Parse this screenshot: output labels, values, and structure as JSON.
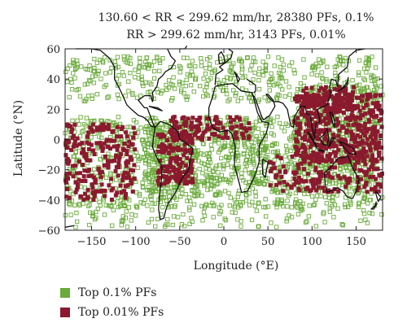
{
  "chart_data": {
    "type": "scatter",
    "title_lines": [
      "130.60 < RR < 299.62 mm/hr, 28380 PFs, 0.1%",
      "RR > 299.62 mm/hr, 3143 PFs, 0.01%"
    ],
    "xlabel": "Longitude (°E)",
    "ylabel": "Latitude (°N)",
    "xlim": [
      -180,
      180
    ],
    "ylim": [
      -60,
      60
    ],
    "xticks": [
      -150,
      -100,
      -50,
      0,
      50,
      100,
      150
    ],
    "yticks": [
      60,
      40,
      20,
      0,
      -20,
      -40,
      -60
    ],
    "series": [
      {
        "name": "Top 0.1% PFs",
        "color": "#6aaa3a",
        "marker": "square-open",
        "regions": [
          {
            "lon": [
              -180,
              180
            ],
            "lat": [
              -45,
              -5
            ],
            "n": 700
          },
          {
            "lon": [
              -180,
              180
            ],
            "lat": [
              -5,
              15
            ],
            "n": 400
          },
          {
            "lon": [
              -180,
              180
            ],
            "lat": [
              25,
              55
            ],
            "n": 450
          },
          {
            "lon": [
              -90,
              -30
            ],
            "lat": [
              -40,
              10
            ],
            "n": 220
          },
          {
            "lon": [
              80,
              170
            ],
            "lat": [
              -30,
              35
            ],
            "n": 350
          },
          {
            "lon": [
              -180,
              180
            ],
            "lat": [
              -58,
              -42
            ],
            "n": 120
          },
          {
            "lon": [
              -20,
              50
            ],
            "lat": [
              -30,
              15
            ],
            "n": 120
          }
        ]
      },
      {
        "name": "Top 0.01% PFs",
        "color": "#8b1a2e",
        "marker": "square-filled",
        "regions": [
          {
            "lon": [
              -180,
              -100
            ],
            "lat": [
              -40,
              10
            ],
            "n": 220
          },
          {
            "lon": [
              -75,
              -35
            ],
            "lat": [
              -30,
              5
            ],
            "n": 160
          },
          {
            "lon": [
              -60,
              30
            ],
            "lat": [
              0,
              15
            ],
            "n": 120
          },
          {
            "lon": [
              80,
              180
            ],
            "lat": [
              -15,
              30
            ],
            "n": 450
          },
          {
            "lon": [
              90,
              150
            ],
            "lat": [
              20,
              35
            ],
            "n": 100
          },
          {
            "lon": [
              50,
              180
            ],
            "lat": [
              -35,
              -10
            ],
            "n": 150
          }
        ]
      }
    ],
    "grid": false,
    "legend_position": "bottom-left"
  }
}
